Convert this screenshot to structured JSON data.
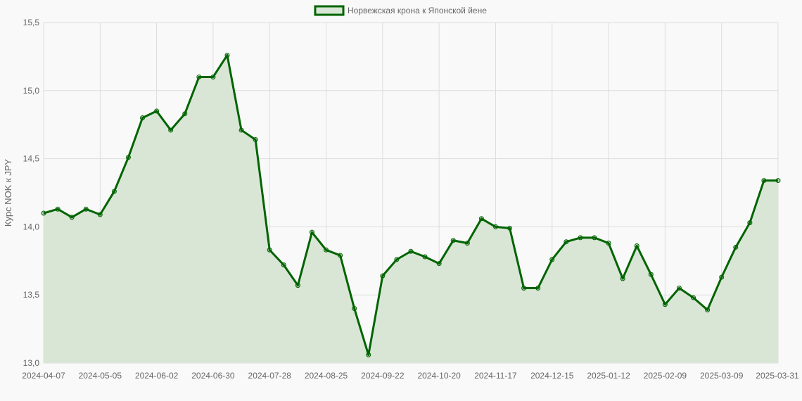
{
  "chart_data": {
    "type": "line",
    "legend": {
      "label": "Норвежская крона к Японской йене",
      "placement": "top"
    },
    "ylabel": "Курс NOK к JPY",
    "xlabel": "",
    "ylim": [
      13.0,
      15.5
    ],
    "y_ticks": [
      "13,0",
      "13,5",
      "14,0",
      "14,5",
      "15,0",
      "15,5"
    ],
    "x_ticks": [
      "2024-04-07",
      "2024-05-05",
      "2024-06-02",
      "2024-06-30",
      "2024-07-28",
      "2024-08-25",
      "2024-09-22",
      "2024-10-20",
      "2024-11-17",
      "2024-12-15",
      "2025-01-12",
      "2025-02-09",
      "2025-03-09",
      "2025-03-31"
    ],
    "grid": true,
    "fill": true,
    "colors": {
      "line": "#006400",
      "fill": "#d9e6d6",
      "grid": "#dddddd"
    },
    "series": [
      {
        "name": "Норвежская крона к Японской йене",
        "values": [
          14.1,
          14.13,
          14.07,
          14.13,
          14.09,
          14.26,
          14.51,
          14.8,
          14.85,
          14.71,
          14.83,
          15.1,
          15.1,
          15.26,
          14.71,
          14.64,
          13.83,
          13.72,
          13.57,
          13.96,
          13.83,
          13.79,
          13.4,
          13.06,
          13.64,
          13.76,
          13.82,
          13.78,
          13.73,
          13.9,
          13.88,
          14.06,
          14.0,
          13.99,
          13.55,
          13.55,
          13.76,
          13.89,
          13.92,
          13.92,
          13.88,
          13.62,
          13.86,
          13.65,
          13.43,
          13.55,
          13.48,
          13.39,
          13.63,
          13.85,
          14.03,
          14.34,
          14.34
        ]
      }
    ]
  }
}
